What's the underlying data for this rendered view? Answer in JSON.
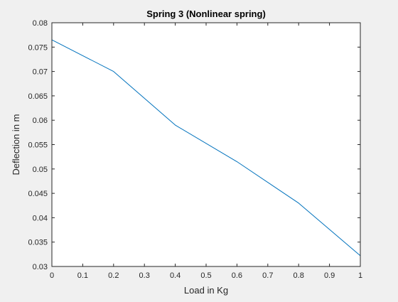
{
  "chart_data": {
    "type": "line",
    "title": "Spring 3 (Nonlinear spring)",
    "xlabel": "Load in Kg",
    "ylabel": "Deflection in m",
    "xlim": [
      0,
      1
    ],
    "ylim": [
      0.03,
      0.08
    ],
    "x_ticks": [
      0,
      0.1,
      0.2,
      0.3,
      0.4,
      0.5,
      0.6,
      0.7,
      0.8,
      0.9,
      1
    ],
    "x_tick_labels": [
      "0",
      "0.1",
      "0.2",
      "0.3",
      "0.4",
      "0.5",
      "0.6",
      "0.7",
      "0.8",
      "0.9",
      "1"
    ],
    "y_ticks": [
      0.03,
      0.035,
      0.04,
      0.045,
      0.05,
      0.055,
      0.06,
      0.065,
      0.07,
      0.075,
      0.08
    ],
    "y_tick_labels": [
      "0.03",
      "0.035",
      "0.04",
      "0.045",
      "0.05",
      "0.055",
      "0.06",
      "0.065",
      "0.07",
      "0.075",
      "0.08"
    ],
    "grid": false,
    "legend": false,
    "series": [
      {
        "x": [
          0,
          0.2,
          0.4,
          0.6,
          0.8,
          1.0
        ],
        "y": [
          0.0765,
          0.07,
          0.059,
          0.0515,
          0.043,
          0.0322
        ],
        "color": "#0072BD"
      }
    ]
  }
}
